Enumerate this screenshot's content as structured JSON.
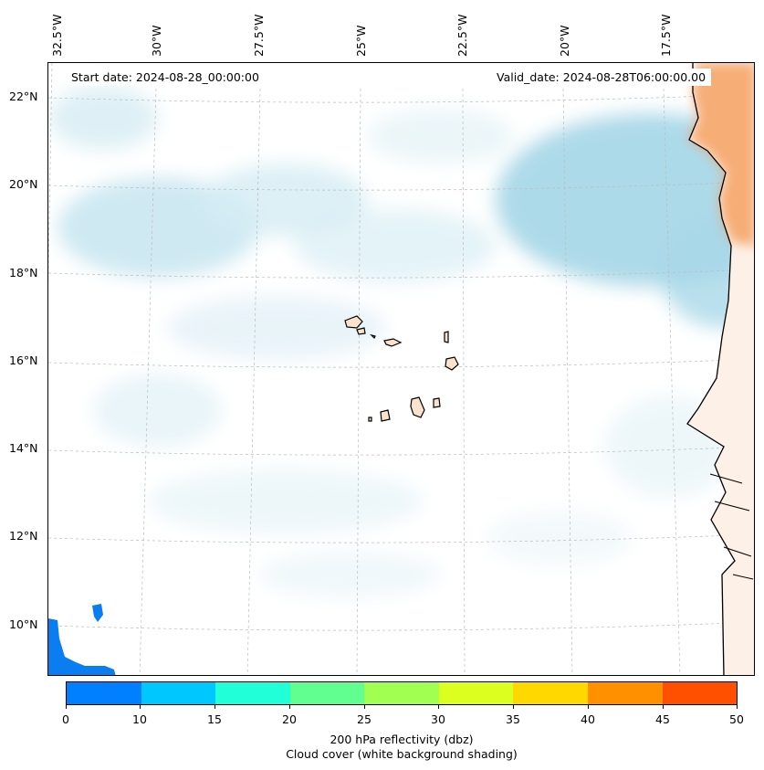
{
  "map": {
    "start_date": "Start date: 2024-08-28_00:00:00",
    "valid_date": "Valid_date: 2024-08-28T06:00:00.00",
    "lon_labels": [
      "32.5°W",
      "30°W",
      "27.5°W",
      "25°W",
      "22.5°W",
      "20°W",
      "17.5°W"
    ],
    "lat_labels": [
      "22°N",
      "20°N",
      "18°N",
      "16°N",
      "14°N",
      "12°N",
      "10°N"
    ],
    "region": "Cape Verde Islands and West African coast",
    "colors": {
      "cloud": "#a9d8e8",
      "land_shade": "#f5a263",
      "islands": "#fbe2cc",
      "coast": "#000000",
      "low_reflectivity": "#0a7df0"
    }
  },
  "colorbar": {
    "ticks": [
      "0",
      "10",
      "15",
      "20",
      "25",
      "30",
      "35",
      "40",
      "45",
      "50"
    ],
    "colors": [
      "#0080ff",
      "#00c8ff",
      "#20ffd8",
      "#60ff90",
      "#a0ff50",
      "#dcff20",
      "#ffd800",
      "#ff9000",
      "#ff5000"
    ],
    "label_line1": "200 hPa reflectivity (dbz)",
    "label_line2": "Cloud cover (white background shading)"
  }
}
